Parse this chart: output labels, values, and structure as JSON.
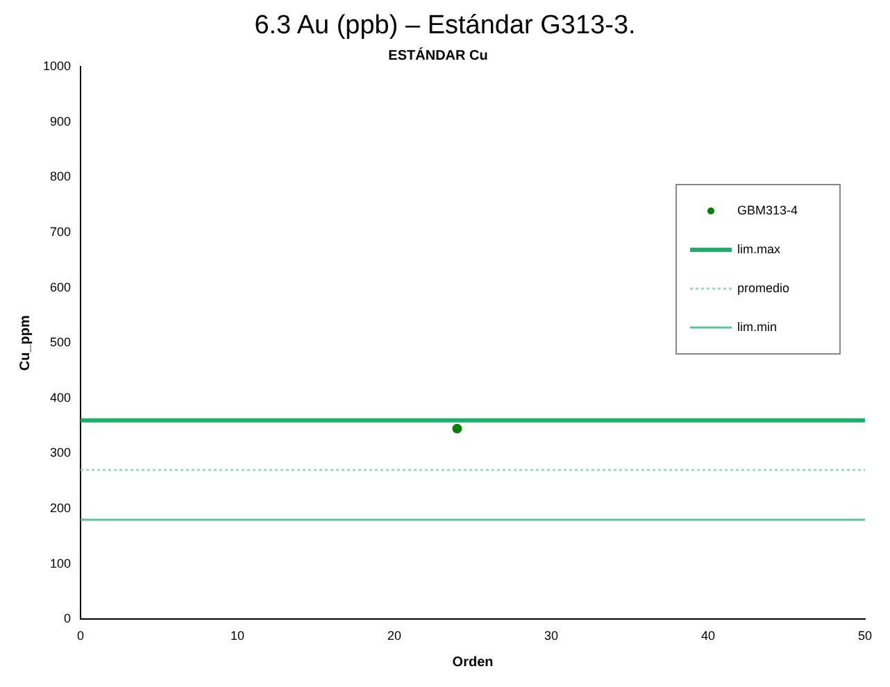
{
  "chart_data": {
    "type": "scatter",
    "title": "6.3 Au (ppb) – Estándar G313-3.",
    "subtitle": "ESTÁNDAR Cu",
    "xlabel": "Orden",
    "ylabel": "Cu_ppm",
    "xlim": [
      0,
      50
    ],
    "xticks": [
      0,
      10,
      20,
      30,
      40,
      50
    ],
    "ylim": [
      0,
      1000
    ],
    "yticks": [
      0,
      100,
      200,
      300,
      400,
      500,
      600,
      700,
      800,
      900,
      1000
    ],
    "grid": false,
    "legend": "right",
    "series": [
      {
        "name": "GBM313-4",
        "type": "scatter",
        "color": "#008000",
        "marker": "circle",
        "x": [
          24
        ],
        "values": [
          345
        ]
      },
      {
        "name": "lim.max",
        "type": "line",
        "color": "#1fae6a",
        "marker": "none",
        "line_style": "solid",
        "x": [
          0,
          50
        ],
        "values": [
          360,
          360
        ]
      },
      {
        "name": "promedio",
        "type": "line",
        "color": "#9fd8c8",
        "marker": "none",
        "line_style": "dotted",
        "x": [
          0,
          50
        ],
        "values": [
          270,
          270
        ]
      },
      {
        "name": "lim.min",
        "type": "line",
        "color": "#5cc49a",
        "marker": "none",
        "line_style": "solid",
        "x": [
          0,
          50
        ],
        "values": [
          180,
          180
        ]
      }
    ]
  }
}
